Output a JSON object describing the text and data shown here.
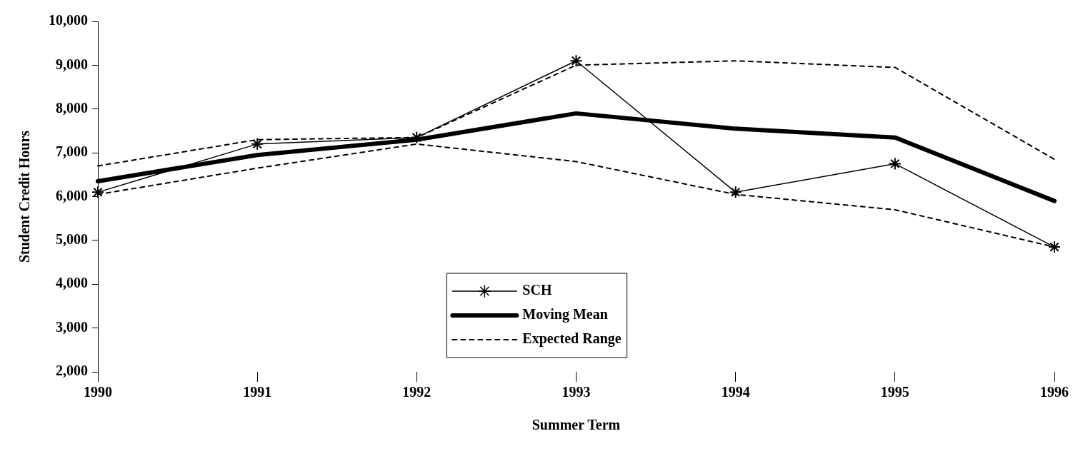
{
  "chart_data": {
    "type": "line",
    "xlabel": "Summer Term",
    "ylabel": "Student Credit Hours",
    "categories": [
      "1990",
      "1991",
      "1992",
      "1993",
      "1994",
      "1995",
      "1996"
    ],
    "ylim": [
      2000,
      10000
    ],
    "yticks": [
      {
        "value": 2000,
        "label": "2,000"
      },
      {
        "value": 3000,
        "label": "3,000"
      },
      {
        "value": 4000,
        "label": "4,000"
      },
      {
        "value": 5000,
        "label": "5,000"
      },
      {
        "value": 6000,
        "label": "6,000"
      },
      {
        "value": 7000,
        "label": "7,000"
      },
      {
        "value": 8000,
        "label": "8,000"
      },
      {
        "value": 9000,
        "label": "9,000"
      },
      {
        "value": 10000,
        "label": "10,000"
      }
    ],
    "grid": false,
    "legend": "bottom",
    "series": [
      {
        "name": "SCH",
        "color": "#000000",
        "marker": "cross",
        "line_style": "solid",
        "values": [
          6100,
          7200,
          7350,
          9100,
          6100,
          6750,
          4850
        ]
      },
      {
        "name": "Moving Mean",
        "color": "#000000",
        "marker": "none",
        "line_style": "solid",
        "values": [
          6350,
          6950,
          7300,
          7900,
          7550,
          7350,
          5900
        ]
      },
      {
        "name": "Expected Range",
        "color": "#000000",
        "marker": "none",
        "line_style": "dashed",
        "values": [
          6700,
          7300,
          7350,
          9000,
          9100,
          8950,
          6850
        ]
      },
      {
        "color": "#000000",
        "marker": "none",
        "line_style": "dashed",
        "values": [
          6050,
          6650,
          7200,
          6800,
          6050,
          5700,
          4850
        ]
      }
    ]
  }
}
